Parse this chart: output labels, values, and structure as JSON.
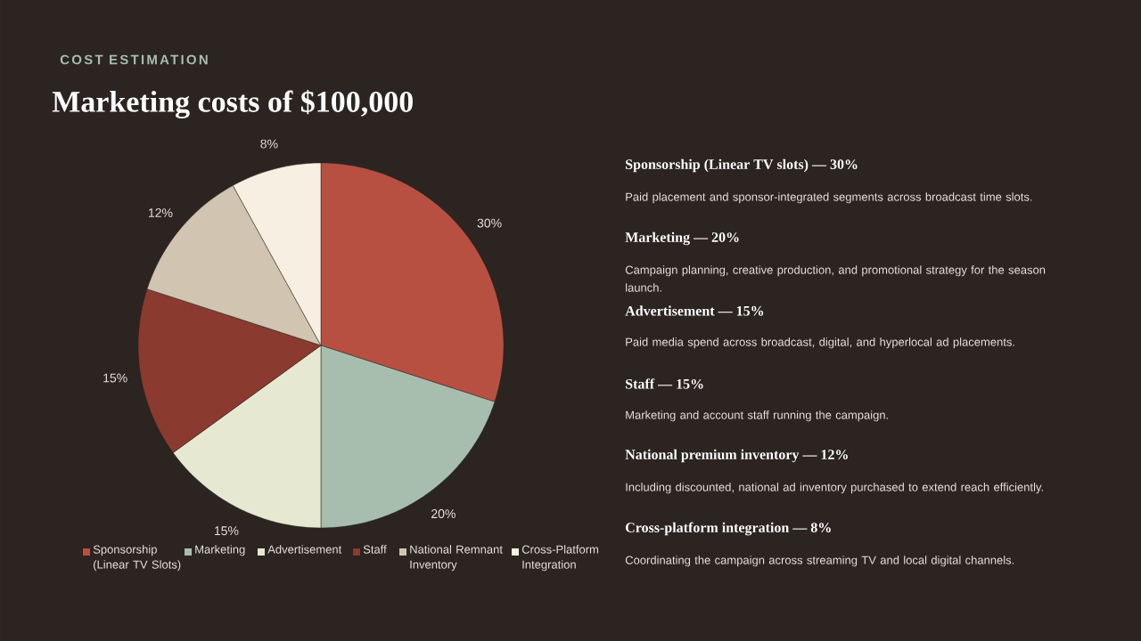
{
  "chart_data": {
    "type": "pie",
    "subtitle": "COST ESTIMATION",
    "title": "Marketing costs of $100,000",
    "categories": [
      "Sponsorship (Linear TV Slots)",
      "Marketing",
      "Advertisement",
      "Staff",
      "National Remnant Inventory",
      "Cross-Platform Integration"
    ],
    "values": [
      30,
      20,
      15,
      15,
      12,
      8
    ],
    "colors": [
      "#b85042",
      "#a7beae",
      "#e7e8d1",
      "#8b3a2f",
      "#d1c4b0",
      "#f7efe2"
    ],
    "value_labels": [
      "30%",
      "20%",
      "15%",
      "15%",
      "12%",
      "8%"
    ],
    "legend": "bottom",
    "annotations": [
      "Sponsorship (Linear TV slots) — 30%",
      "Paid placement and sponsor-integrated segments across broadcast time slots.",
      "Marketing — 20%",
      "Campaign planning, creative production, and promotional strategy for the season launch.",
      "Advertisement — 15%",
      "Paid media spend across broadcast, digital, and hyperlocal ad placements.",
      "Staff — 15%",
      "Marketing and account staff running the campaign.",
      "National premium inventory — 12%",
      "Including discounted,  national ad inventory purchased to extend reach efficiently.",
      "Cross-platform integration — 8%",
      "Coordinating the campaign across streaming TV and local digital channels."
    ]
  }
}
